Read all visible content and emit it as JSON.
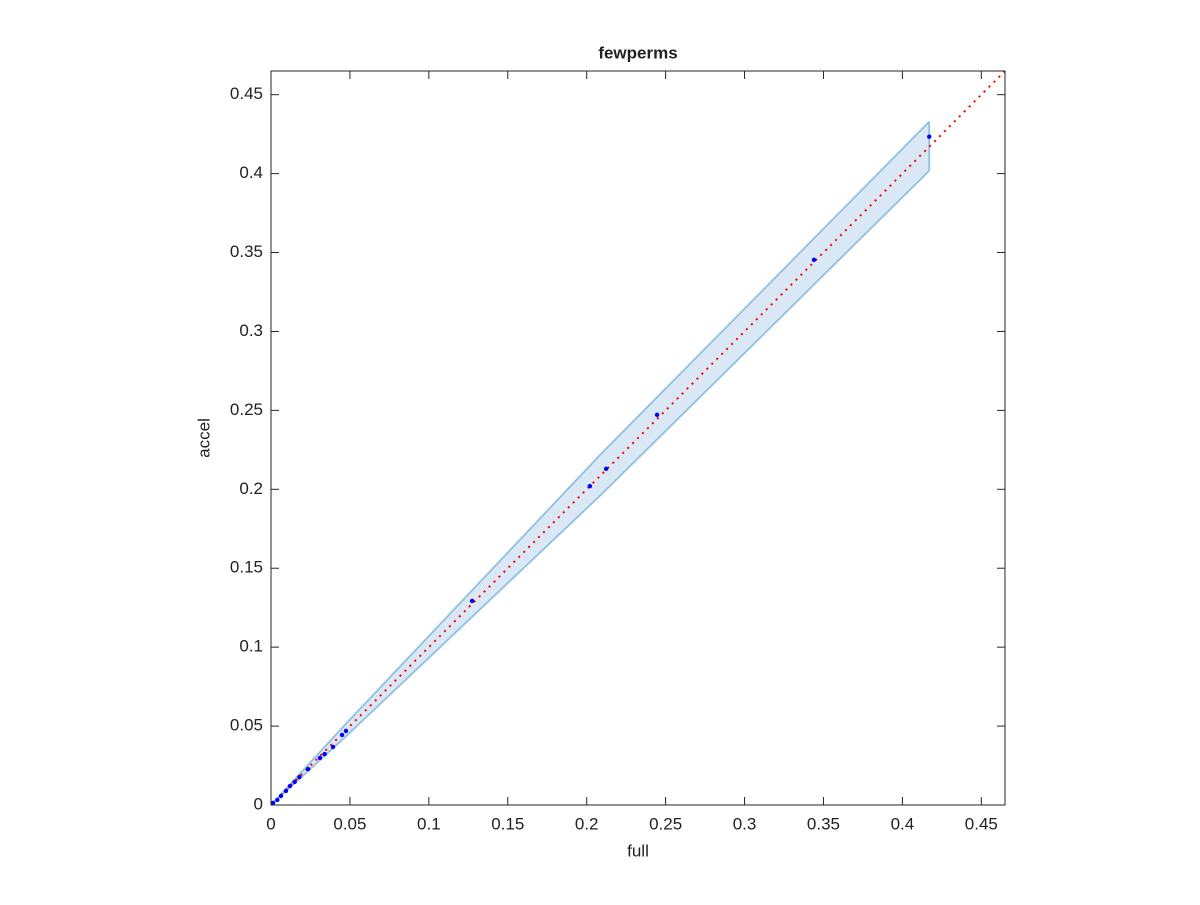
{
  "chart_data": {
    "type": "scatter",
    "title": "fewperms",
    "x_label": "full",
    "y_label": "accel",
    "xlim": [
      0,
      0.465
    ],
    "ylim": [
      0,
      0.465
    ],
    "xticks": [
      0,
      0.05,
      0.1,
      0.15,
      0.2,
      0.25,
      0.3,
      0.35,
      0.4,
      0.45
    ],
    "yticks": [
      0,
      0.05,
      0.1,
      0.15,
      0.2,
      0.25,
      0.3,
      0.35,
      0.4,
      0.45
    ],
    "points": {
      "color": "#0000ff",
      "x": [
        0.417,
        0.344,
        0.2446,
        0.2123,
        0.202,
        0.1274,
        0.0475,
        0.045,
        0.0393,
        0.034,
        0.031,
        0.0235,
        0.018,
        0.015,
        0.012,
        0.0095,
        0.0063,
        0.004,
        0.0013
      ],
      "y": [
        0.4234,
        0.3454,
        0.2472,
        0.213,
        0.202,
        0.1293,
        0.0469,
        0.0444,
        0.0368,
        0.0323,
        0.0298,
        0.0228,
        0.0177,
        0.0146,
        0.012,
        0.0089,
        0.0057,
        0.0032,
        0.0013
      ]
    },
    "band": {
      "color": "#dae8f5",
      "edge_color": "#8fc0e0",
      "x": [
        0,
        0.048,
        0.2085,
        0.417
      ],
      "upper": [
        0,
        0.052,
        0.2218,
        0.4329
      ],
      "lower": [
        0,
        0.044,
        0.196,
        0.4018
      ]
    },
    "reference": {
      "color": "#ff0000",
      "x": [
        0,
        0.465
      ],
      "y": [
        0,
        0.465
      ]
    }
  }
}
